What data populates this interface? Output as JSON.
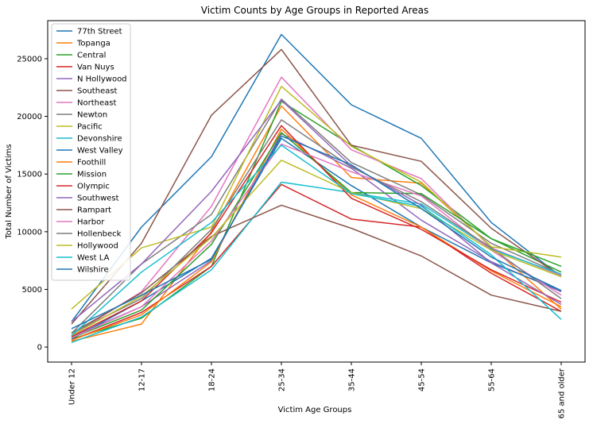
{
  "chart_data": {
    "type": "line",
    "title": "Victim Counts by Age Groups in Reported Areas",
    "xlabel": "Victim Age Groups",
    "ylabel": "Total Number of Victims",
    "categories": [
      "Under 12",
      "12-17",
      "18-24",
      "25-34",
      "35-44",
      "45-54",
      "55-64",
      "65 and older"
    ],
    "ylim": [
      -1300,
      28300
    ],
    "yticks": [
      0,
      5000,
      10000,
      15000,
      20000,
      25000
    ],
    "grid": false,
    "legend_position": "top-left",
    "series": [
      {
        "name": "77th Street",
        "color": "#1f77b4",
        "values": [
          2200,
          10400,
          16500,
          27100,
          21000,
          18100,
          10800,
          6100
        ]
      },
      {
        "name": "Topanga",
        "color": "#ff7f0e",
        "values": [
          500,
          2000,
          10000,
          20900,
          14700,
          14200,
          8700,
          3300
        ]
      },
      {
        "name": "Central",
        "color": "#2ca02c",
        "values": [
          700,
          2500,
          7000,
          21300,
          17500,
          14000,
          9400,
          6500
        ]
      },
      {
        "name": "Van Nuys",
        "color": "#d62728",
        "values": [
          600,
          3000,
          7000,
          14100,
          11100,
          10400,
          6400,
          3100
        ]
      },
      {
        "name": "N Hollywood",
        "color": "#9467bd",
        "values": [
          900,
          3500,
          7500,
          18500,
          15500,
          11000,
          7400,
          4800
        ]
      },
      {
        "name": "Southeast",
        "color": "#8c564b",
        "values": [
          2000,
          9000,
          20100,
          25800,
          17500,
          16100,
          10300,
          6100
        ]
      },
      {
        "name": "Northeast",
        "color": "#e377c2",
        "values": [
          1000,
          4800,
          12200,
          23400,
          17100,
          14600,
          8600,
          6200
        ]
      },
      {
        "name": "Newton",
        "color": "#7f7f7f",
        "values": [
          1200,
          7200,
          11500,
          21500,
          16000,
          13200,
          9000,
          6300
        ]
      },
      {
        "name": "Pacific",
        "color": "#bcbd22",
        "values": [
          3300,
          8600,
          10400,
          22600,
          17400,
          14300,
          8700,
          7800
        ]
      },
      {
        "name": "Devonshire",
        "color": "#17becf",
        "values": [
          400,
          2600,
          6700,
          14300,
          13400,
          12400,
          8500,
          6300
        ]
      },
      {
        "name": "West Valley",
        "color": "#1f77b4",
        "values": [
          700,
          4000,
          7700,
          18100,
          14000,
          10400,
          7300,
          4900
        ]
      },
      {
        "name": "Foothill",
        "color": "#ff7f0e",
        "values": [
          600,
          2800,
          7400,
          18900,
          13200,
          10400,
          6600,
          3500
        ]
      },
      {
        "name": "Mission",
        "color": "#2ca02c",
        "values": [
          800,
          3200,
          8900,
          18600,
          13400,
          13300,
          9400,
          7000
        ]
      },
      {
        "name": "Olympic",
        "color": "#d62728",
        "values": [
          900,
          4000,
          9900,
          19200,
          12900,
          10200,
          6700,
          3900
        ]
      },
      {
        "name": "Southwest",
        "color": "#9467bd",
        "values": [
          2200,
          7200,
          13500,
          21400,
          15700,
          12300,
          7300,
          3700
        ]
      },
      {
        "name": "Rampart",
        "color": "#8c564b",
        "values": [
          1200,
          4700,
          9600,
          12300,
          10300,
          7900,
          4500,
          3100
        ]
      },
      {
        "name": "Harbor",
        "color": "#e377c2",
        "values": [
          800,
          3500,
          9200,
          17600,
          15200,
          13100,
          8400,
          4500
        ]
      },
      {
        "name": "Hollenbeck",
        "color": "#7f7f7f",
        "values": [
          1200,
          4200,
          10200,
          19700,
          15600,
          12600,
          8600,
          4200
        ]
      },
      {
        "name": "Hollywood",
        "color": "#bcbd22",
        "values": [
          1000,
          4400,
          9500,
          16200,
          13400,
          12000,
          8400,
          6100
        ]
      },
      {
        "name": "West LA",
        "color": "#17becf",
        "values": [
          1000,
          6500,
          10800,
          17500,
          13300,
          12200,
          8000,
          2400
        ]
      },
      {
        "name": "Wilshire",
        "color": "#1f77b4",
        "values": [
          1600,
          4500,
          7600,
          18300,
          15800,
          12000,
          7800,
          4900
        ]
      }
    ]
  }
}
